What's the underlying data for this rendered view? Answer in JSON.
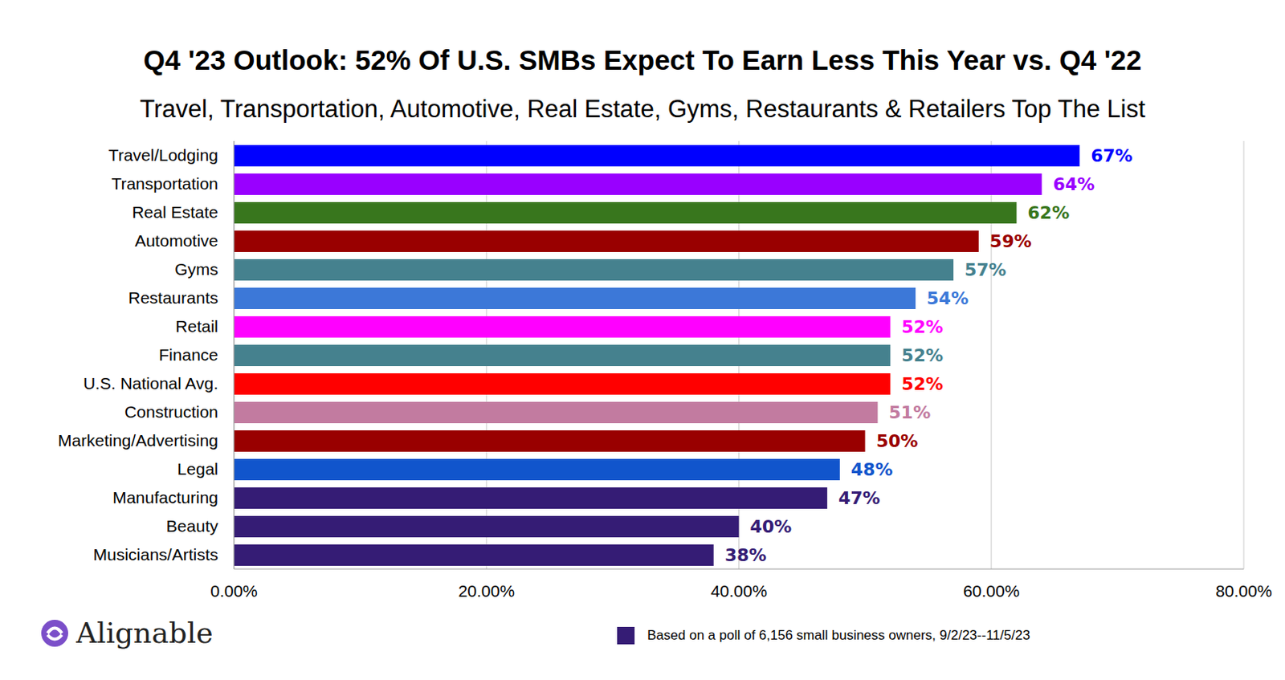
{
  "chart_data": {
    "type": "bar",
    "title": "Q4 '23 Outlook: 52% Of U.S. SMBs Expect To Earn Less This Year vs. Q4 '22",
    "subtitle": "Travel, Transportation, Automotive, Real Estate, Gyms, Restaurants & Retailers Top The List",
    "orientation": "horizontal",
    "categories": [
      "Travel/Lodging",
      "Transportation",
      "Real Estate",
      "Automotive",
      "Gyms",
      "Restaurants",
      "Retail",
      "Finance",
      "U.S. National Avg.",
      "Construction",
      "Marketing/Advertising",
      "Legal",
      "Manufacturing",
      "Beauty",
      "Musicians/Artists"
    ],
    "values": [
      67,
      64,
      62,
      59,
      57,
      54,
      52,
      52,
      52,
      51,
      50,
      48,
      47,
      40,
      38
    ],
    "value_labels": [
      "67%",
      "64%",
      "62%",
      "59%",
      "57%",
      "54%",
      "52%",
      "52%",
      "52%",
      "51%",
      "50%",
      "48%",
      "47%",
      "40%",
      "38%"
    ],
    "colors": [
      "#0000ff",
      "#9900ff",
      "#38761d",
      "#990000",
      "#45818e",
      "#3c78d8",
      "#ff00ff",
      "#45818e",
      "#ff0000",
      "#c27ba0",
      "#990000",
      "#1155cc",
      "#351c75",
      "#351c75",
      "#351c75"
    ],
    "xlim": [
      0,
      80
    ],
    "xticks": [
      {
        "value": 0,
        "label": "0.00%"
      },
      {
        "value": 20,
        "label": "20.00%"
      },
      {
        "value": 40,
        "label": "40.00%"
      },
      {
        "value": 60,
        "label": "60.00%"
      },
      {
        "value": 80,
        "label": "80.00%"
      }
    ],
    "grid": true,
    "data_labels": true,
    "annotations": [
      "Based on a poll of 6,156 small business owners, 9/2/23--11/5/23",
      "Alignable"
    ]
  }
}
